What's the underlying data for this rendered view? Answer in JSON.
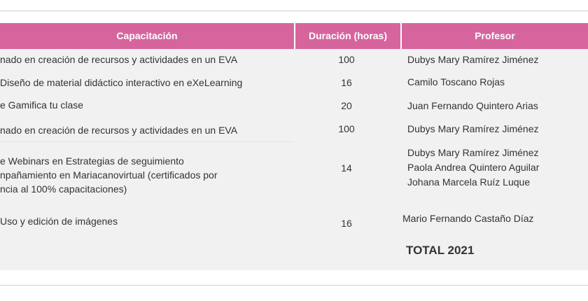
{
  "table": {
    "headers": {
      "capacitacion": "Capacitación",
      "duracion": "Duración (horas)",
      "profesor": "Profesor"
    },
    "rows": [
      {
        "capacitacion": [
          "nado en creación de recursos y actividades en un EVA"
        ],
        "duracion": "100",
        "profesor": [
          "Dubys Mary Ramírez Jiménez"
        ]
      },
      {
        "capacitacion": [
          "Diseño de material didáctico interactivo en eXeLearning"
        ],
        "duracion": "16",
        "profesor": [
          "Camilo Toscano Rojas"
        ]
      },
      {
        "capacitacion": [
          "e Gamifica tu clase"
        ],
        "duracion": "20",
        "profesor": [
          "Juan Fernando Quintero Arias"
        ]
      },
      {
        "capacitacion": [
          "nado en creación de recursos y actividades en un EVA"
        ],
        "duracion": "100",
        "profesor": [
          "Dubys Mary Ramírez Jiménez"
        ]
      },
      {
        "capacitacion": [
          "e Webinars en Estrategias de seguimiento",
          "npañamiento en Mariacanovirtual (certificados por",
          "ncia al 100% capacitaciones)"
        ],
        "duracion": "14",
        "profesor": [
          "Dubys Mary Ramírez Jiménez",
          "Paola Andrea Quintero Aguilar",
          "Johana Marcela Ruíz Luque"
        ]
      },
      {
        "capacitacion": [
          "Uso y edición de imágenes"
        ],
        "duracion": "16",
        "profesor": [
          "Mario Fernando Castaño Díaz"
        ]
      }
    ],
    "total_label": "TOTAL 2021"
  }
}
